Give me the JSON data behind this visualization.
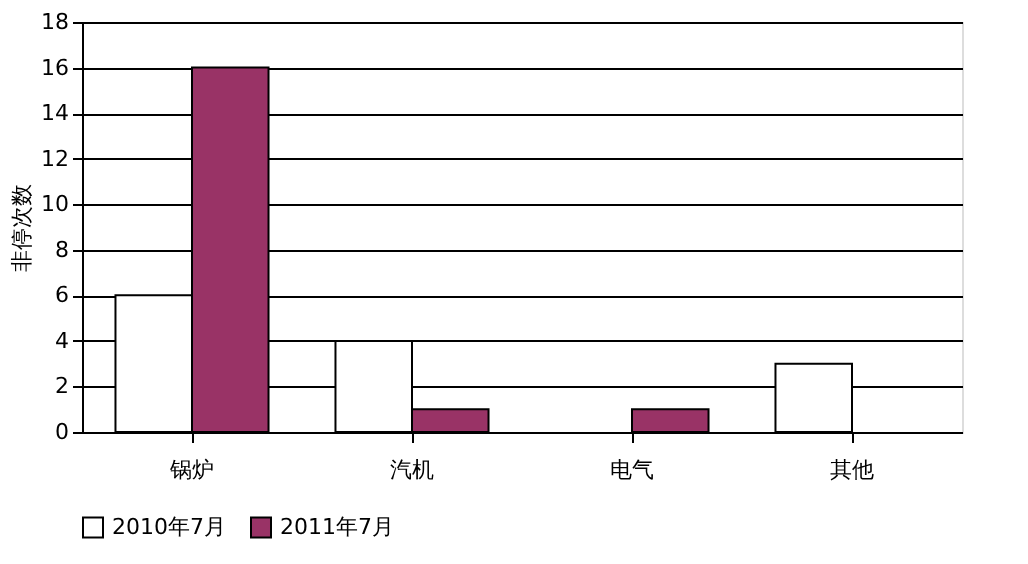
{
  "chart_data": {
    "type": "bar",
    "ylabel": "非停次数",
    "categories": [
      "锅炉",
      "汽机",
      "电气",
      "其他"
    ],
    "series": [
      {
        "name": "2010年7月",
        "color": "#ffffff",
        "values": [
          6,
          4,
          0,
          3
        ]
      },
      {
        "name": "2011年7月",
        "color": "#993366",
        "values": [
          16,
          1,
          1,
          0
        ]
      }
    ],
    "ylim": [
      0,
      18
    ],
    "yticks": [
      0,
      2,
      4,
      6,
      8,
      10,
      12,
      14,
      16,
      18
    ],
    "grid": "y",
    "legend": "bottom"
  }
}
